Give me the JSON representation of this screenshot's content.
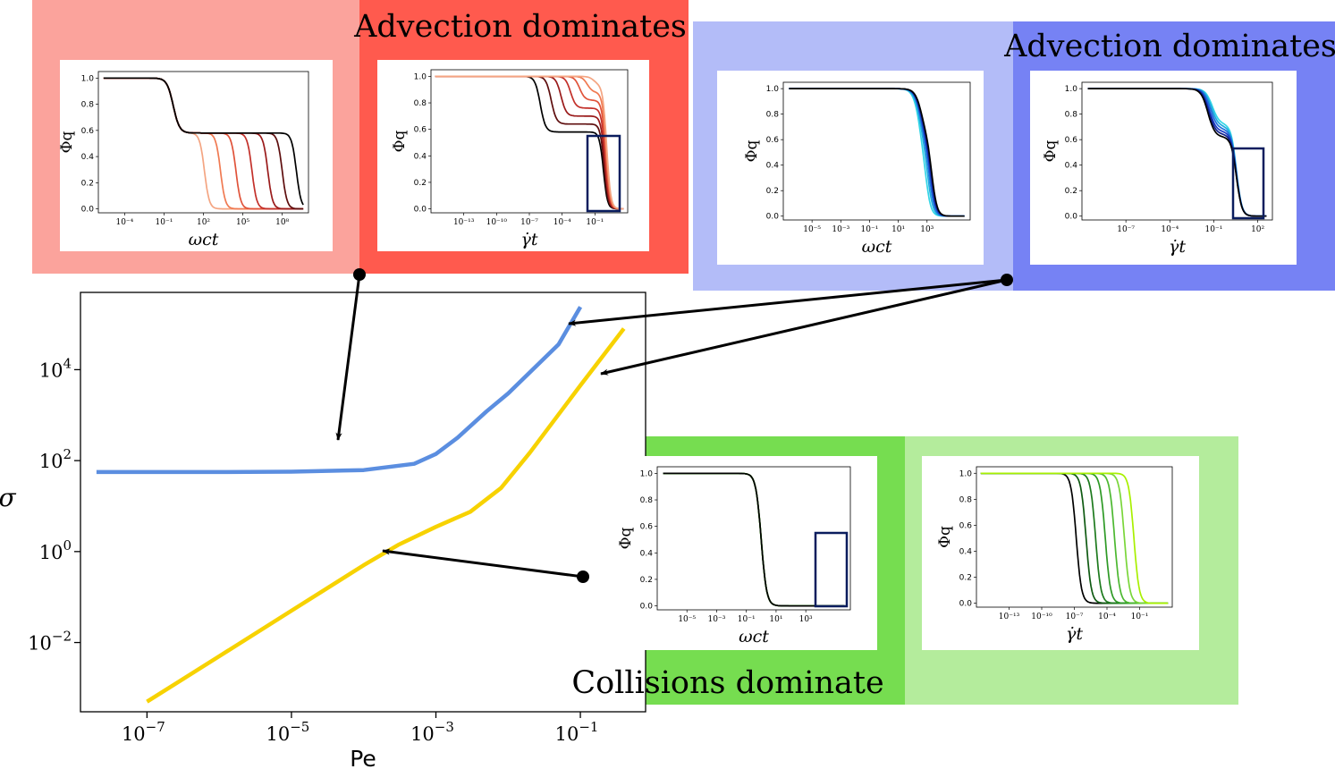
{
  "colors": {
    "red_light": "#FBA39C",
    "red": "#FF5A4E",
    "blue_light": "#B3BCF8",
    "blue": "#7682F4",
    "green": "#76DD50",
    "green_light": "#B4EC9C",
    "main_blue": "#5B8EE0",
    "main_yellow": "#F7D200",
    "box_navy": "#0A1D5E"
  },
  "labels": {
    "advection_left": "Advection dominates",
    "advection_right": "Advection dominates",
    "collisions": "Collisions dominate"
  },
  "chart_data": [
    {
      "id": "main",
      "type": "line",
      "xlabel": "Pe",
      "ylabel": "σ",
      "xscale": "log",
      "yscale": "log",
      "xlim": [
        1.2e-08,
        0.8
      ],
      "ylim": [
        0.0003,
        500000
      ],
      "xticks": [
        {
          "value": 1e-07,
          "base": "10",
          "exp": "−7"
        },
        {
          "value": 1e-05,
          "base": "10",
          "exp": "−5"
        },
        {
          "value": 0.001,
          "base": "10",
          "exp": "−3"
        },
        {
          "value": 0.1,
          "base": "10",
          "exp": "−1"
        }
      ],
      "yticks": [
        {
          "value": 0.01,
          "base": "10",
          "exp": "−2"
        },
        {
          "value": 1,
          "base": "10",
          "exp": "0"
        },
        {
          "value": 100,
          "base": "10",
          "exp": "2"
        },
        {
          "value": 10000,
          "base": "10",
          "exp": "4"
        }
      ],
      "series": [
        {
          "color": "#5B8EE0",
          "points": [
            [
              2e-08,
              56
            ],
            [
              1e-06,
              56
            ],
            [
              1e-05,
              57
            ],
            [
              0.0001,
              62
            ],
            [
              0.0005,
              85
            ],
            [
              0.001,
              140
            ],
            [
              0.002,
              320
            ],
            [
              0.005,
              1200
            ],
            [
              0.01,
              3000
            ],
            [
              0.05,
              36000
            ],
            [
              0.1,
              240000
            ]
          ]
        },
        {
          "color": "#F7D200",
          "points": [
            [
              1e-07,
              0.0005
            ],
            [
              1e-06,
              0.005
            ],
            [
              1e-05,
              0.05
            ],
            [
              0.0001,
              0.5
            ],
            [
              0.0003,
              1.4
            ],
            [
              0.001,
              3.5
            ],
            [
              0.003,
              7.5
            ],
            [
              0.008,
              25
            ],
            [
              0.02,
              150
            ],
            [
              0.1,
              4500
            ],
            [
              0.4,
              80000
            ]
          ]
        }
      ]
    },
    {
      "id": "red-left",
      "type": "line",
      "xlabel": "ωct",
      "ylabel": "Φq",
      "xscale": "log",
      "xlim": [
        1e-06,
        10000000000.0
      ],
      "ylim": [
        -0.03,
        1.05
      ],
      "xticks": [
        {
          "v": 0.0001,
          "label": "10⁻⁴"
        },
        {
          "v": 0.1,
          "label": "10⁻¹"
        },
        {
          "v": 100,
          "label": "10²"
        },
        {
          "v": 100000.0,
          "label": "10⁵"
        },
        {
          "v": 100000000.0,
          "label": "10⁸"
        }
      ],
      "yticks": [
        0.0,
        0.2,
        0.4,
        0.6,
        0.8,
        1.0
      ],
      "series": [
        {
          "color": "#F4A582",
          "plateau": 0.58,
          "t1": 0.5,
          "t2": 120
        },
        {
          "color": "#F07A52",
          "plateau": 0.58,
          "t1": 0.5,
          "t2": 2000
        },
        {
          "color": "#E0533A",
          "plateau": 0.58,
          "t1": 0.5,
          "t2": 30000
        },
        {
          "color": "#C3302A",
          "plateau": 0.58,
          "t1": 0.5,
          "t2": 500000
        },
        {
          "color": "#9A1B1B",
          "plateau": 0.58,
          "t1": 0.5,
          "t2": 8000000
        },
        {
          "color": "#5E0E0E",
          "plateau": 0.58,
          "t1": 0.5,
          "t2": 100000000
        },
        {
          "color": "#000000",
          "plateau": 0.58,
          "t1": 0.5,
          "t2": 1200000000
        }
      ]
    },
    {
      "id": "red-right",
      "type": "line",
      "xlabel": "γ̇t",
      "ylabel": "Φq",
      "xscale": "log",
      "xlim": [
        1e-16,
        100
      ],
      "ylim": [
        -0.03,
        1.05
      ],
      "xticks": [
        {
          "v": 1e-13,
          "label": "10⁻¹³"
        },
        {
          "v": 1e-10,
          "label": "10⁻¹⁰"
        },
        {
          "v": 1e-07,
          "label": "10⁻⁷"
        },
        {
          "v": 0.0001,
          "label": "10⁻⁴"
        },
        {
          "v": 0.1,
          "label": "10⁻¹"
        }
      ],
      "yticks": [
        0.0,
        0.2,
        0.4,
        0.6,
        0.8,
        1.0
      ],
      "series": [
        {
          "color": "#000000",
          "plateau": 0.58,
          "t1": 1e-06,
          "t2": 0.6
        },
        {
          "color": "#5E0E0E",
          "plateau": 0.64,
          "t1": 1e-05,
          "t2": 0.7
        },
        {
          "color": "#9A1B1B",
          "plateau": 0.7,
          "t1": 8e-05,
          "t2": 0.8
        },
        {
          "color": "#C3302A",
          "plateau": 0.76,
          "t1": 0.0006,
          "t2": 0.9
        },
        {
          "color": "#E0533A",
          "plateau": 0.82,
          "t1": 0.004,
          "t2": 1.0
        },
        {
          "color": "#F07A52",
          "plateau": 0.88,
          "t1": 0.02,
          "t2": 1.1
        },
        {
          "color": "#F4A582",
          "plateau": 0.94,
          "t1": 0.08,
          "t2": 1.2
        }
      ]
    },
    {
      "id": "blue-left",
      "type": "line",
      "xlabel": "ωct",
      "ylabel": "Φq",
      "xscale": "log",
      "xlim": [
        1e-07,
        1000000.0
      ],
      "ylim": [
        -0.03,
        1.05
      ],
      "xticks": [
        {
          "v": 1e-05,
          "label": "10⁻⁵"
        },
        {
          "v": 0.001,
          "label": "10⁻³"
        },
        {
          "v": 0.1,
          "label": "10⁻¹"
        },
        {
          "v": 10,
          "label": "10¹"
        },
        {
          "v": 1000,
          "label": "10³"
        }
      ],
      "yticks": [
        0.0,
        0.2,
        0.4,
        0.6,
        0.8,
        1.0
      ],
      "series": [
        {
          "color": "#33D6E6",
          "plateau": 0.5,
          "t1": 300,
          "t2": 900
        },
        {
          "color": "#1FA9E0",
          "plateau": 0.55,
          "t1": 330,
          "t2": 1200
        },
        {
          "color": "#1E6FD9",
          "plateau": 0.58,
          "t1": 360,
          "t2": 1500
        },
        {
          "color": "#1A3BC4",
          "plateau": 0.6,
          "t1": 380,
          "t2": 1800
        },
        {
          "color": "#0E1F8A",
          "plateau": 0.62,
          "t1": 400,
          "t2": 2000
        },
        {
          "color": "#000000",
          "plateau": 0.63,
          "t1": 420,
          "t2": 2200
        }
      ]
    },
    {
      "id": "blue-right",
      "type": "line",
      "xlabel": "γ̇t",
      "ylabel": "Φq",
      "xscale": "log",
      "xlim": [
        1e-10,
        1000
      ],
      "ylim": [
        -0.03,
        1.05
      ],
      "xticks": [
        {
          "v": 1e-07,
          "label": "10⁻⁷"
        },
        {
          "v": 0.0001,
          "label": "10⁻⁴"
        },
        {
          "v": 0.1,
          "label": "10⁻¹"
        },
        {
          "v": 100,
          "label": "10²"
        }
      ],
      "yticks": [
        0.0,
        0.2,
        0.4,
        0.6,
        0.8,
        1.0
      ],
      "series": [
        {
          "color": "#33D6E6",
          "plateau": 0.72,
          "t1": 0.08,
          "t2": 3.5
        },
        {
          "color": "#1FA9E0",
          "plateau": 0.7,
          "t1": 0.07,
          "t2": 3.5
        },
        {
          "color": "#1E6FD9",
          "plateau": 0.68,
          "t1": 0.06,
          "t2": 3.5
        },
        {
          "color": "#1A3BC4",
          "plateau": 0.66,
          "t1": 0.05,
          "t2": 3.5
        },
        {
          "color": "#0E1F8A",
          "plateau": 0.64,
          "t1": 0.045,
          "t2": 3.5
        },
        {
          "color": "#000000",
          "plateau": 0.62,
          "t1": 0.04,
          "t2": 3.5
        }
      ]
    },
    {
      "id": "green-left",
      "type": "line",
      "xlabel": "ωct",
      "ylabel": "Φq",
      "xscale": "log",
      "xlim": [
        1e-07,
        1000000.0
      ],
      "ylim": [
        -0.03,
        1.05
      ],
      "xticks": [
        {
          "v": 1e-05,
          "label": "10⁻⁵"
        },
        {
          "v": 0.001,
          "label": "10⁻³"
        },
        {
          "v": 0.1,
          "label": "10⁻¹"
        },
        {
          "v": 10,
          "label": "10¹"
        },
        {
          "v": 1000,
          "label": "10³"
        }
      ],
      "yticks": [
        0.0,
        0.2,
        0.4,
        0.6,
        0.8,
        1.0
      ],
      "series": [
        {
          "color": "#A8F000",
          "plateau": 0.0,
          "t1": 120,
          "t2": 1
        },
        {
          "color": "#4CB830",
          "plateau": 0.0,
          "t1": 135,
          "t2": 1
        },
        {
          "color": "#1D7A1D",
          "plateau": 0.0,
          "t1": 150,
          "t2": 1
        },
        {
          "color": "#000000",
          "plateau": 0.0,
          "t1": 160,
          "t2": 1
        }
      ]
    },
    {
      "id": "green-right",
      "type": "line",
      "xlabel": "γ̇t",
      "ylabel": "Φq",
      "xscale": "log",
      "xlim": [
        1e-16,
        100
      ],
      "ylim": [
        -0.03,
        1.05
      ],
      "xticks": [
        {
          "v": 1e-13,
          "label": "10⁻¹³"
        },
        {
          "v": 1e-10,
          "label": "10⁻¹⁰"
        },
        {
          "v": 1e-07,
          "label": "10⁻⁷"
        },
        {
          "v": 0.0001,
          "label": "10⁻⁴"
        },
        {
          "v": 0.1,
          "label": "10⁻¹"
        }
      ],
      "yticks": [
        0.0,
        0.2,
        0.4,
        0.6,
        0.8,
        1.0
      ],
      "series": [
        {
          "color": "#000000",
          "plateau": 0.0,
          "t1": 1.5e-07,
          "t2": 1
        },
        {
          "color": "#0F5A12",
          "plateau": 0.0,
          "t1": 1.2e-06,
          "t2": 1
        },
        {
          "color": "#1D7A1D",
          "plateau": 0.0,
          "t1": 9e-06,
          "t2": 1
        },
        {
          "color": "#2E9A26",
          "plateau": 0.0,
          "t1": 7e-05,
          "t2": 1
        },
        {
          "color": "#4CB830",
          "plateau": 0.0,
          "t1": 0.0005,
          "t2": 1
        },
        {
          "color": "#7AD63A",
          "plateau": 0.0,
          "t1": 0.004,
          "t2": 1
        },
        {
          "color": "#A8F000",
          "plateau": 0.0,
          "t1": 0.03,
          "t2": 1
        }
      ]
    }
  ]
}
